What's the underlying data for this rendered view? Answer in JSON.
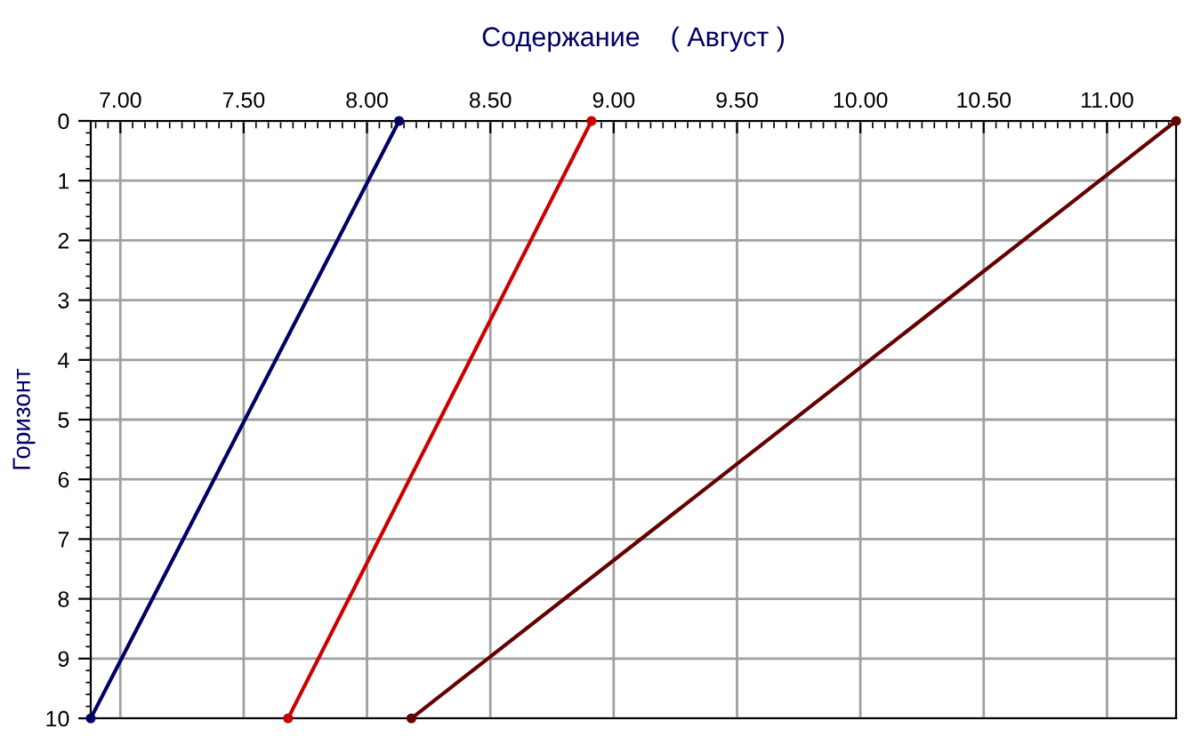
{
  "chart_data": {
    "type": "line",
    "title": "Содержание    ( Август )",
    "ylabel": "Горизонт",
    "xlim": [
      6.88,
      11.28
    ],
    "xticks": [
      {
        "value": 7,
        "label": "7.00"
      },
      {
        "value": 7.5,
        "label": "7.50"
      },
      {
        "value": 8,
        "label": "8.00"
      },
      {
        "value": 8.5,
        "label": "8.50"
      },
      {
        "value": 9,
        "label": "9.00"
      },
      {
        "value": 9.5,
        "label": "9.50"
      },
      {
        "value": 10,
        "label": "10.00"
      },
      {
        "value": 10.5,
        "label": "10.50"
      },
      {
        "value": 11,
        "label": "11.00"
      }
    ],
    "ylim": [
      10,
      0
    ],
    "yticks": [
      0,
      1,
      2,
      3,
      4,
      5,
      6,
      7,
      8,
      9,
      10
    ],
    "grid": true,
    "marker": "circle",
    "line_style": "solid",
    "series": [
      {
        "color": "#000066",
        "x": [
          8.13,
          6.88
        ],
        "values": [
          0,
          10
        ]
      },
      {
        "color": "#cc0000",
        "x": [
          8.91,
          7.68
        ],
        "values": [
          0,
          10
        ]
      },
      {
        "color": "#660000",
        "x": [
          11.28,
          8.18
        ],
        "values": [
          0,
          10
        ]
      }
    ]
  }
}
